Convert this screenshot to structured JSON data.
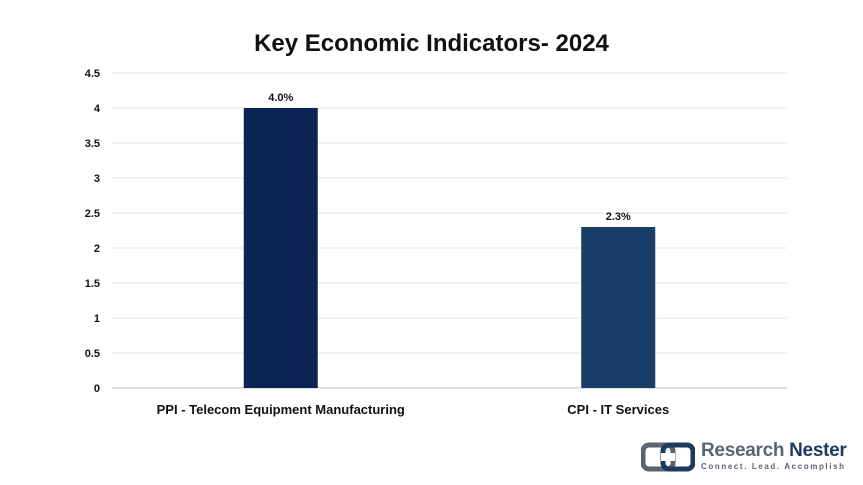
{
  "chart_data": {
    "type": "bar",
    "title": "Key Economic Indicators- 2024",
    "categories": [
      "PPI - Telecom Equipment Manufacturing",
      "CPI - IT Services"
    ],
    "values": [
      4.0,
      2.3
    ],
    "data_labels": [
      "4.0%",
      "2.3%"
    ],
    "bar_colors": [
      "#0b2454",
      "#173d68"
    ],
    "ylim": [
      0,
      4.5
    ],
    "yticks": [
      "0",
      "0.5",
      "1",
      "1.5",
      "2",
      "2.5",
      "3",
      "3.5",
      "4",
      "4.5"
    ],
    "grid": true,
    "legend": "none",
    "xlabel": "",
    "ylabel": ""
  },
  "brand": {
    "name_part1": "Research",
    "name_part2": "Nester",
    "tagline": "Connect. Lead. Accomplish",
    "logo_icon": "research-nester-logo-icon",
    "colors": {
      "gray": "#5b6470",
      "navy": "#1c3a5e"
    }
  }
}
